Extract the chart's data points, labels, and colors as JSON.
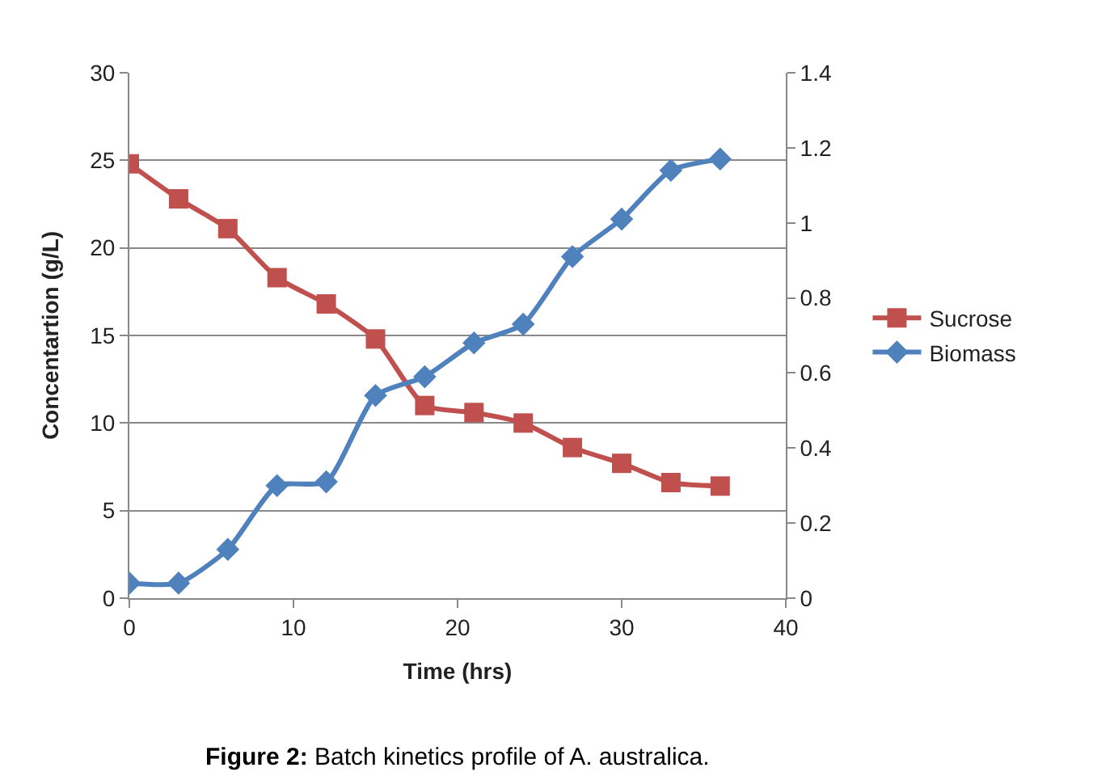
{
  "chart_data": {
    "type": "line",
    "xlabel": "Time (hrs)",
    "ylabel": "Concentartion (g/L)",
    "x": [
      0,
      3,
      6,
      9,
      12,
      15,
      18,
      21,
      24,
      27,
      30,
      33,
      36
    ],
    "series": [
      {
        "name": "Sucrose",
        "color": "#c0504d",
        "marker": "square",
        "values": [
          24.8,
          22.8,
          21.1,
          18.3,
          16.8,
          14.8,
          11.0,
          10.6,
          10.0,
          8.6,
          7.7,
          6.6,
          6.4
        ]
      },
      {
        "name": "Biomass",
        "color": "#4f81bd",
        "marker": "diamond",
        "axis": "y2",
        "values": [
          0.04,
          0.04,
          0.13,
          0.3,
          0.31,
          0.54,
          0.59,
          0.68,
          0.73,
          0.91,
          1.01,
          1.14,
          1.17
        ]
      }
    ],
    "xlim": [
      0,
      40
    ],
    "xticks": [
      0,
      10,
      20,
      30,
      40
    ],
    "ylim": [
      0,
      30
    ],
    "yticks": [
      0,
      5,
      10,
      15,
      20,
      25,
      30
    ],
    "y2lim": [
      0,
      1.4
    ],
    "y2ticks": [
      0,
      {
        "value": 0.2,
        "label": "0.2"
      },
      {
        "value": 0.4,
        "label": "0.4"
      },
      {
        "value": 0.6,
        "label": "0.6"
      },
      {
        "value": 0.8,
        "label": "0.8"
      },
      1,
      {
        "value": 1.2,
        "label": "1.2"
      },
      {
        "value": 1.4,
        "label": "1.4"
      }
    ],
    "grid": "y",
    "legend": "right",
    "annotations": [
      "Figure 2: Batch kinetics profile of A. australica."
    ]
  }
}
